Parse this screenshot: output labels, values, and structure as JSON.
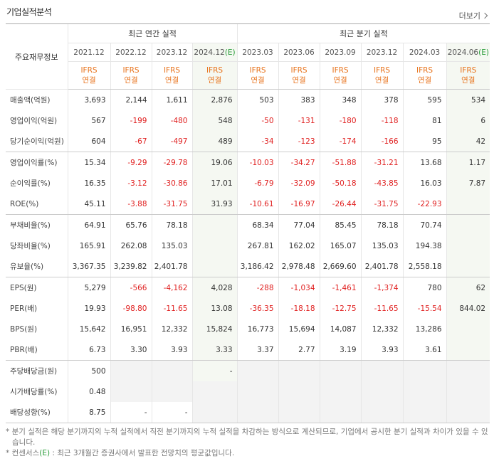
{
  "header": {
    "title": "기업실적분석",
    "more": "더보기"
  },
  "table": {
    "corner": "주요재무정보",
    "groups": [
      {
        "label": "최근 연간 실적",
        "span": 4
      },
      {
        "label": "최근 분기 실적",
        "span": 6
      }
    ],
    "columns": [
      {
        "date": "2021.12",
        "standard": "IFRS",
        "consolidation": "연결"
      },
      {
        "date": "2022.12",
        "standard": "IFRS",
        "consolidation": "연결"
      },
      {
        "date": "2023.12",
        "standard": "IFRS",
        "consolidation": "연결"
      },
      {
        "date": "2024.12",
        "estimate": "(E)",
        "standard": "IFRS",
        "consolidation": "연결"
      },
      {
        "date": "2023.03",
        "standard": "IFRS",
        "consolidation": "연결"
      },
      {
        "date": "2023.06",
        "standard": "IFRS",
        "consolidation": "연결"
      },
      {
        "date": "2023.09",
        "standard": "IFRS",
        "consolidation": "연결"
      },
      {
        "date": "2023.12",
        "standard": "IFRS",
        "consolidation": "연결"
      },
      {
        "date": "2024.03",
        "standard": "IFRS",
        "consolidation": "연결"
      },
      {
        "date": "2024.06",
        "estimate": "(E)",
        "standard": "IFRS",
        "consolidation": "연결"
      }
    ],
    "rows": [
      {
        "label": "매출액(억원)",
        "cells": [
          "3,693",
          "2,144",
          "1,611",
          "2,876",
          "503",
          "383",
          "348",
          "378",
          "595",
          "534"
        ]
      },
      {
        "label": "영업이익(억원)",
        "cells": [
          "567",
          "-199",
          "-480",
          "548",
          "-50",
          "-131",
          "-180",
          "-118",
          "81",
          "6"
        ]
      },
      {
        "label": "당기순이익(억원)",
        "cells": [
          "604",
          "-67",
          "-497",
          "489",
          "-34",
          "-123",
          "-174",
          "-166",
          "95",
          "42"
        ]
      },
      {
        "label": "영업이익률(%)",
        "cells": [
          "15.34",
          "-9.29",
          "-29.78",
          "19.06",
          "-10.03",
          "-34.27",
          "-51.88",
          "-31.21",
          "13.68",
          "1.17"
        ]
      },
      {
        "label": "순이익률(%)",
        "cells": [
          "16.35",
          "-3.12",
          "-30.86",
          "17.01",
          "-6.79",
          "-32.09",
          "-50.18",
          "-43.85",
          "16.03",
          "7.87"
        ]
      },
      {
        "label": "ROE(%)",
        "cells": [
          "45.11",
          "-3.88",
          "-31.75",
          "31.93",
          "-10.61",
          "-16.97",
          "-26.44",
          "-31.75",
          "-22.93",
          null
        ]
      },
      {
        "label": "부채비율(%)",
        "cells": [
          "64.91",
          "65.76",
          "78.18",
          null,
          "68.34",
          "77.04",
          "85.45",
          "78.18",
          "70.74",
          null
        ]
      },
      {
        "label": "당좌비율(%)",
        "cells": [
          "165.91",
          "262.08",
          "135.03",
          null,
          "267.81",
          "162.02",
          "165.07",
          "135.03",
          "194.38",
          null
        ]
      },
      {
        "label": "유보율(%)",
        "cells": [
          "3,367.35",
          "3,239.82",
          "2,401.78",
          null,
          "3,186.42",
          "2,978.48",
          "2,669.60",
          "2,401.78",
          "2,558.18",
          null
        ]
      },
      {
        "label": "EPS(원)",
        "cells": [
          "5,279",
          "-566",
          "-4,162",
          "4,028",
          "-288",
          "-1,034",
          "-1,461",
          "-1,374",
          "780",
          "62"
        ]
      },
      {
        "label": "PER(배)",
        "cells": [
          "19.93",
          "-98.80",
          "-11.65",
          "13.08",
          "-36.35",
          "-18.18",
          "-12.75",
          "-11.65",
          "-15.54",
          "844.02"
        ]
      },
      {
        "label": "BPS(원)",
        "cells": [
          "15,642",
          "16,951",
          "12,332",
          "15,824",
          "16,773",
          "15,694",
          "14,087",
          "12,332",
          "13,286",
          null
        ]
      },
      {
        "label": "PBR(배)",
        "cells": [
          "6.73",
          "3.30",
          "3.93",
          "3.33",
          "3.37",
          "2.77",
          "3.19",
          "3.93",
          "3.61",
          null
        ]
      },
      {
        "label": "주당배당금(원)",
        "cells": [
          "500",
          null,
          null,
          "-",
          null,
          null,
          null,
          null,
          null,
          null
        ]
      },
      {
        "label": "시가배당률(%)",
        "cells": [
          "0.48",
          null,
          null,
          null,
          null,
          null,
          null,
          null,
          null,
          null
        ]
      },
      {
        "label": "배당성향(%)",
        "cells": [
          "8.75",
          "-",
          "-",
          null,
          null,
          null,
          null,
          null,
          null,
          null
        ]
      }
    ]
  },
  "notes": [
    {
      "text": "* 분기 실적은 해당 분기까지의 누적 실적에서 직전 분기까지의 누적 실적을 차감하는 방식으로 계산되므로, 기업에서 공시한 분기 실적과 차이가 있을 수 있습니다."
    },
    {
      "lead": "* 컨센서스",
      "mark": "(E)",
      "text": " : 최근 3개월간 증권사에서 발표한 전망치의 평균값입니다."
    }
  ]
}
